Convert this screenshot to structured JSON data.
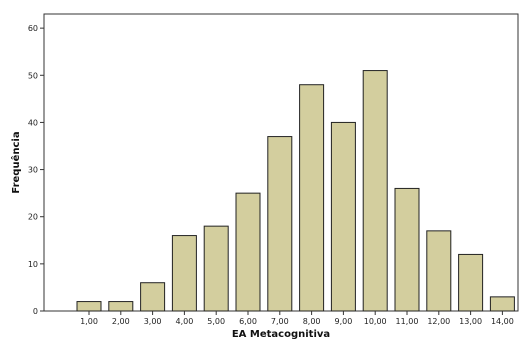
{
  "chart_data": {
    "type": "bar",
    "title": "",
    "xlabel": "EA Metacognitiva",
    "ylabel": "Frequência",
    "categories": [
      "1,00",
      "2,00",
      "3,00",
      "4,00",
      "5,00",
      "6,00",
      "7,00",
      "8,00",
      "9,00",
      "10,00",
      "11,00",
      "12,00",
      "13,00",
      "14,00"
    ],
    "values": [
      2,
      2,
      6,
      16,
      18,
      25,
      37,
      48,
      40,
      51,
      26,
      17,
      12,
      3
    ],
    "ylim": [
      0,
      63
    ],
    "yticks": [
      0,
      10,
      20,
      30,
      40,
      50,
      60
    ],
    "grid": false,
    "legend": "none",
    "colors": {
      "bar_fill": "#d3ce9e",
      "bar_stroke": "#222222",
      "plot_border": "#333333"
    }
  }
}
